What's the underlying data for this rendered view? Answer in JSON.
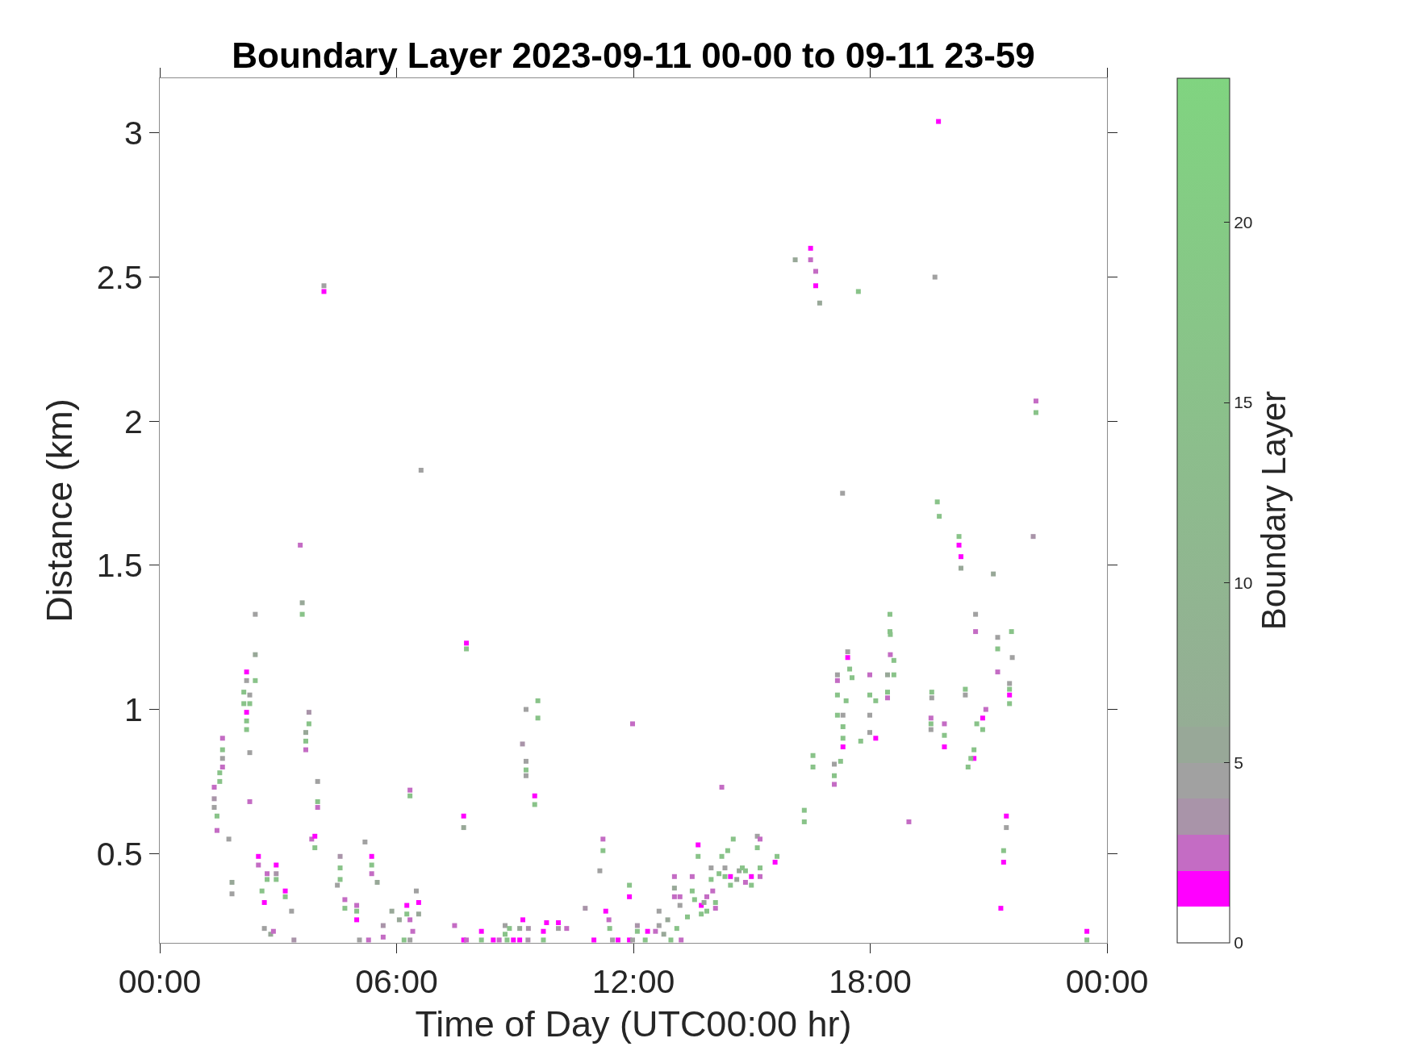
{
  "chart_data": {
    "type": "scatter",
    "title": "Boundary Layer 2023-09-11 00-00 to 09-11 23-59",
    "xlabel": "Time of Day (UTC00:00 hr)",
    "ylabel": "Distance (km)",
    "clabel": "Boundary Layer",
    "marker": "square",
    "xlim": [
      0,
      24
    ],
    "xticks": [
      {
        "value": 0,
        "label": "00:00"
      },
      {
        "value": 6,
        "label": "06:00"
      },
      {
        "value": 12,
        "label": "12:00"
      },
      {
        "value": 18,
        "label": "18:00"
      },
      {
        "value": 24,
        "label": "00:00"
      }
    ],
    "ylim": [
      0.19,
      3.19
    ],
    "yticks": [
      0.5,
      1,
      1.5,
      2,
      2.5,
      3
    ],
    "clim": [
      0,
      24
    ],
    "cticks": [
      0,
      5,
      10,
      15,
      20
    ],
    "x": [
      4.16,
      4.16,
      6.62,
      3.56,
      3.61,
      3.61,
      2.42,
      19.73,
      16.1,
      16.49,
      16.49,
      16.62,
      16.62,
      16.72,
      17.7,
      19.64,
      22.2,
      22.2,
      22.13,
      17.3,
      19.7,
      19.75,
      20.25,
      20.25,
      20.3,
      20.3,
      21.12,
      18.5,
      18.5,
      20.67,
      20.67,
      21.58,
      2.42,
      2.42,
      2.2,
      2.2,
      2.13,
      2.13,
      2.28,
      2.28,
      2.2,
      2.2,
      2.2,
      2.28,
      1.59,
      1.59,
      1.59,
      1.59,
      1.52,
      1.52,
      1.38,
      1.38,
      1.38,
      1.45,
      1.45,
      1.75,
      2.28,
      3.78,
      3.78,
      3.7,
      3.7,
      3.7,
      4.0,
      4.0,
      4.0,
      3.85,
      3.93,
      3.93,
      5.2,
      2.5,
      2.5,
      1.83,
      1.83,
      2.72,
      2.72,
      2.95,
      2.95,
      2.95,
      2.59,
      2.65,
      3.18,
      3.18,
      2.65,
      2.81,
      2.88,
      3.34,
      3.4,
      4.57,
      4.57,
      4.57,
      4.5,
      4.69,
      4.69,
      4.99,
      4.99,
      4.99,
      5.37,
      5.37,
      5.37,
      5.51,
      5.06,
      5.29,
      5.66,
      5.66,
      5.88,
      6.07,
      6.26,
      6.26,
      6.19,
      6.34,
      6.34,
      7.77,
      7.77,
      9.28,
      9.58,
      9.58,
      9.19,
      9.28,
      9.28,
      9.28,
      9.5,
      9.5,
      7.7,
      7.7,
      11.23,
      11.23,
      11.15,
      11.9,
      11.9,
      11.98,
      6.5,
      6.56,
      6.56,
      6.34,
      6.41,
      6.34,
      7.47,
      7.7,
      7.77,
      8.15,
      8.15,
      8.45,
      8.6,
      8.75,
      8.75,
      8.86,
      8.8,
      8.96,
      9.12,
      9.12,
      9.2,
      9.33,
      9.34,
      9.72,
      9.72,
      9.8,
      10.1,
      10.1,
      10.31,
      10.78,
      11.0,
      11.3,
      11.38,
      11.4,
      11.47,
      11.61,
      11.9,
      11.98,
      12.1,
      12.1,
      12.36,
      12.3,
      12.56,
      12.65,
      12.65,
      12.77,
      12.87,
      12.95,
      13.04,
      13.04,
      13.04,
      13.18,
      13.18,
      13.21,
      13.1,
      13.37,
      13.49,
      13.49,
      13.55,
      13.64,
      13.64,
      13.72,
      13.72,
      13.79,
      13.86,
      13.86,
      13.97,
      13.97,
      14.01,
      14.08,
      14.08,
      14.17,
      14.24,
      14.24,
      14.32,
      14.32,
      14.39,
      14.46,
      14.46,
      14.53,
      14.62,
      14.68,
      14.76,
      14.84,
      14.84,
      14.99,
      14.99,
      15.14,
      15.14,
      15.21,
      15.21,
      15.21,
      15.59,
      15.64,
      16.33,
      16.33,
      16.55,
      16.55,
      17.09,
      17.09,
      17.09,
      17.25,
      17.31,
      17.31,
      17.31,
      17.31,
      17.17,
      17.17,
      17.17,
      17.17,
      17.39,
      17.43,
      17.43,
      17.48,
      17.54,
      17.76,
      17.99,
      17.99,
      17.99,
      17.99,
      18.14,
      18.14,
      18.44,
      18.44,
      18.44,
      18.51,
      18.51,
      18.6,
      18.6,
      19.56,
      19.56,
      20.41,
      20.41,
      21.23,
      21.23,
      21.23,
      21.6,
      21.53,
      21.53,
      21.53,
      21.53,
      19.54,
      19.54,
      19.54,
      19.88,
      19.88,
      19.88,
      20.7,
      20.85,
      20.85,
      20.93,
      20.63,
      20.63,
      20.55,
      20.48,
      18.98,
      21.45,
      21.45,
      21.38,
      21.38,
      21.31,
      23.49,
      23.49
    ],
    "values": [
      2.47,
      2.45,
      1.83,
      1.57,
      1.37,
      1.33,
      1.33,
      3.04,
      2.56,
      2.6,
      2.56,
      2.52,
      2.47,
      2.41,
      2.45,
      2.5,
      2.07,
      2.03,
      1.6,
      1.75,
      1.72,
      1.67,
      1.6,
      1.57,
      1.53,
      1.49,
      1.47,
      1.33,
      1.27,
      1.33,
      1.27,
      1.27,
      1.19,
      1.1,
      1.13,
      1.1,
      1.06,
      1.02,
      1.05,
      1.02,
      0.99,
      0.96,
      0.93,
      0.85,
      0.9,
      0.86,
      0.83,
      0.8,
      0.78,
      0.75,
      0.73,
      0.69,
      0.66,
      0.63,
      0.58,
      0.55,
      0.68,
      0.99,
      0.95,
      0.92,
      0.89,
      0.86,
      0.75,
      0.68,
      0.66,
      0.55,
      0.56,
      0.52,
      0.54,
      0.49,
      0.46,
      0.4,
      0.36,
      0.43,
      0.41,
      0.46,
      0.43,
      0.41,
      0.37,
      0.33,
      0.37,
      0.35,
      0.24,
      0.22,
      0.23,
      0.3,
      0.2,
      0.49,
      0.45,
      0.41,
      0.39,
      0.34,
      0.31,
      0.32,
      0.3,
      0.27,
      0.49,
      0.46,
      0.43,
      0.4,
      0.2,
      0.2,
      0.25,
      0.21,
      0.3,
      0.27,
      0.32,
      0.29,
      0.2,
      0.72,
      0.7,
      1.23,
      1.21,
      1.0,
      1.03,
      0.97,
      0.88,
      0.82,
      0.79,
      0.77,
      0.7,
      0.67,
      0.63,
      0.59,
      0.55,
      0.51,
      0.44,
      0.39,
      0.35,
      0.95,
      0.37,
      0.33,
      0.29,
      0.27,
      0.23,
      0.2,
      0.25,
      0.2,
      0.2,
      0.23,
      0.2,
      0.2,
      0.2,
      0.25,
      0.22,
      0.24,
      0.2,
      0.2,
      0.24,
      0.2,
      0.27,
      0.2,
      0.24,
      0.23,
      0.2,
      0.26,
      0.26,
      0.24,
      0.24,
      0.31,
      0.2,
      0.3,
      0.27,
      0.24,
      0.2,
      0.2,
      0.2,
      0.2,
      0.25,
      0.23,
      0.23,
      0.2,
      0.23,
      0.3,
      0.25,
      0.22,
      0.27,
      0.2,
      0.42,
      0.38,
      0.35,
      0.35,
      0.32,
      0.2,
      0.24,
      0.28,
      0.42,
      0.37,
      0.34,
      0.53,
      0.49,
      0.32,
      0.29,
      0.33,
      0.35,
      0.3,
      0.45,
      0.41,
      0.37,
      0.33,
      0.31,
      0.43,
      0.49,
      0.73,
      0.45,
      0.42,
      0.51,
      0.42,
      0.39,
      0.55,
      0.41,
      0.44,
      0.45,
      0.4,
      0.44,
      0.42,
      0.39,
      0.56,
      0.52,
      0.55,
      0.45,
      0.42,
      0.47,
      0.49,
      0.65,
      0.61,
      0.84,
      0.8,
      0.81,
      0.77,
      0.74,
      0.82,
      0.98,
      0.94,
      0.9,
      0.87,
      1.12,
      1.1,
      1.05,
      0.98,
      1.03,
      1.2,
      1.18,
      1.14,
      1.11,
      0.89,
      1.12,
      1.05,
      0.98,
      0.92,
      1.03,
      0.9,
      1.12,
      1.06,
      1.04,
      1.26,
      1.19,
      1.17,
      1.12,
      1.06,
      1.04,
      1.07,
      1.05,
      1.25,
      1.21,
      1.13,
      1.18,
      1.09,
      1.07,
      1.05,
      1.02,
      0.97,
      0.95,
      0.93,
      0.95,
      0.91,
      0.87,
      0.95,
      0.97,
      0.93,
      1.0,
      0.86,
      0.83,
      0.83,
      0.8,
      0.61,
      0.63,
      0.59,
      0.51,
      0.47,
      0.31,
      0.23,
      0.2
    ],
    "cvalues": [
      4.5,
      1.5,
      4.5,
      2.5,
      5.5,
      16,
      4.5,
      1.5,
      5.5,
      1.5,
      2.5,
      2.5,
      1.5,
      5.5,
      16,
      4.5,
      2.5,
      16,
      3.5,
      4.5,
      16,
      16,
      16,
      1.5,
      1.5,
      5.5,
      5.5,
      16,
      16,
      4.5,
      2.5,
      16,
      5.5,
      16,
      1.5,
      4.5,
      16,
      16,
      4.5,
      16,
      1.5,
      16,
      16,
      4.5,
      2.5,
      16,
      4.5,
      2.5,
      16,
      16,
      2.5,
      3.5,
      4.5,
      16,
      2.5,
      4.5,
      2.5,
      3.5,
      16,
      5.5,
      16,
      2.5,
      4.5,
      16,
      2.5,
      2.5,
      1.5,
      16,
      4.5,
      1.5,
      2.5,
      5.5,
      4.5,
      2.5,
      16,
      1.5,
      3.5,
      16,
      16,
      1.5,
      1.5,
      16,
      4.5,
      5.5,
      2.5,
      4.5,
      3.5,
      3.5,
      16,
      16,
      4.5,
      2.5,
      16,
      2.5,
      16,
      1.5,
      1.5,
      16,
      2.5,
      5.5,
      4.5,
      2.5,
      3.5,
      2.5,
      5.5,
      5.5,
      1.5,
      16,
      16,
      2.5,
      16,
      1.5,
      16,
      4.5,
      16,
      16,
      3.5,
      4.5,
      16,
      4.5,
      1.5,
      16,
      1.5,
      5.5,
      2.5,
      16,
      4.5,
      16,
      1.5,
      2.5,
      4.5,
      1.5,
      5.5,
      2.5,
      2.5,
      4.5,
      2.5,
      1.5,
      2.5,
      1.5,
      16,
      1.5,
      2.5,
      4.5,
      16,
      16,
      16,
      1.5,
      5.5,
      1.5,
      1.5,
      3.5,
      3.5,
      1.5,
      16,
      1.5,
      1.5,
      4.5,
      2.5,
      3.5,
      1.5,
      1.5,
      2.5,
      16,
      4.5,
      1.5,
      1.5,
      4.5,
      3.5,
      16,
      1.5,
      16,
      2.5,
      4.5,
      4.5,
      5.5,
      5.5,
      16,
      2.5,
      5.5,
      2.5,
      2.5,
      4.5,
      2.5,
      16,
      16,
      2.5,
      16,
      16,
      1.5,
      16,
      1.5,
      16,
      5.5,
      2.5,
      16,
      4.5,
      16,
      2.5,
      16,
      2.5,
      16,
      16,
      2.5,
      4.5,
      16,
      16,
      1.5,
      16,
      16,
      5.5,
      5.5,
      16,
      2.5,
      16,
      1.5,
      16,
      4.5,
      16,
      2.5,
      16,
      2.5,
      1.5,
      16,
      16,
      16,
      16,
      16,
      4.5,
      16,
      2.5,
      16,
      4.5,
      16,
      16,
      1.5,
      4.5,
      2.5,
      16,
      16,
      16,
      4.5,
      1.5,
      16,
      16,
      16,
      2.5,
      16,
      4.5,
      4.5,
      16,
      1.5,
      5.5,
      16,
      2.5,
      16,
      2.5,
      16,
      16,
      16,
      4.5,
      16,
      4.5,
      4.5,
      16,
      2.5,
      4.5,
      4.5,
      16,
      1.5,
      16,
      2.5,
      16,
      4.5,
      2.5,
      16,
      1.5,
      16,
      1.5,
      16,
      2.5,
      16,
      1.5,
      16,
      16,
      2.5,
      1.5,
      4.5,
      16,
      1.5,
      1.5,
      1.5,
      16
    ]
  }
}
